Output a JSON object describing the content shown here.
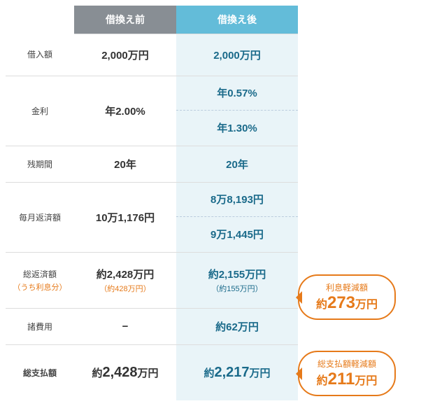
{
  "headers": {
    "before": "借換え前",
    "after": "借換え後"
  },
  "rows": {
    "loan": {
      "label": "借入額",
      "before": "2,000万円",
      "after": "2,000万円"
    },
    "rate": {
      "label": "金利",
      "before": "年2.00%",
      "after1": "年0.57%",
      "after2": "年1.30%"
    },
    "term": {
      "label": "残期間",
      "before": "20年",
      "after": "20年"
    },
    "monthly": {
      "label": "毎月返済額",
      "before": "10万1,176円",
      "after1": "8万8,193円",
      "after2": "9万1,445円"
    },
    "total_repay": {
      "label": "総返済額",
      "sublabel": "（うち利息分）",
      "before": "約2,428万円",
      "before_sub": "（約428万円）",
      "after": "約2,155万円",
      "after_sub": "（約155万円）"
    },
    "fees": {
      "label": "諸費用",
      "before": "−",
      "after": "約62万円"
    },
    "total_pay": {
      "label": "総支払額",
      "before_prefix": "約",
      "before_num": "2,428",
      "before_suffix": "万円",
      "after_prefix": "約",
      "after_num": "2,217",
      "after_suffix": "万円"
    }
  },
  "callouts": {
    "interest": {
      "title": "利息軽減額",
      "prefix": "約",
      "num": "273",
      "suffix": "万円"
    },
    "total": {
      "title": "総支払額軽減額",
      "prefix": "約",
      "num": "211",
      "suffix": "万円"
    }
  },
  "colors": {
    "before_header": "#888e94",
    "after_header": "#63bcd9",
    "after_bg": "#e9f4f8",
    "after_text": "#1a6a8a",
    "accent": "#e67a1a"
  }
}
